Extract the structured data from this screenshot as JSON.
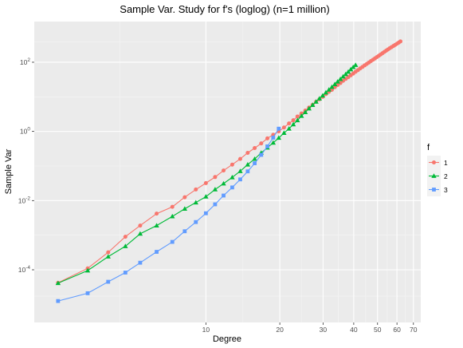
{
  "chart_data": {
    "type": "line",
    "title": "Sample Var. Study for f's (loglog) (n=1 million)",
    "xlabel": "Degree",
    "ylabel": "Sample Var",
    "x_scale": "log",
    "y_scale": "log",
    "xlim": [
      2,
      75
    ],
    "ylim": [
      3e-06,
      1500
    ],
    "x_ticks": [
      {
        "value": 10,
        "label": "10"
      },
      {
        "value": 20,
        "label": "20"
      },
      {
        "value": 30,
        "label": "30"
      },
      {
        "value": 40,
        "label": "40"
      },
      {
        "value": 50,
        "label": "50"
      },
      {
        "value": 60,
        "label": "60"
      },
      {
        "value": 70,
        "label": "70"
      }
    ],
    "y_ticks": [
      {
        "value": 0.0001,
        "base": "10",
        "exp": "-4"
      },
      {
        "value": 0.01,
        "base": "10",
        "exp": "-2"
      },
      {
        "value": 1,
        "base": "10",
        "exp": "0"
      },
      {
        "value": 100,
        "base": "10",
        "exp": "2"
      }
    ],
    "grid": true,
    "background": "#ebebeb",
    "legend": {
      "title": "f",
      "position": "right"
    },
    "series": [
      {
        "name": "1",
        "color": "#F8766D",
        "marker": "circle",
        "points": [
          [
            2.5,
            4.2e-05
          ],
          [
            3.3,
            0.00011
          ],
          [
            4,
            0.00032
          ],
          [
            4.7,
            0.0009
          ],
          [
            5.4,
            0.0019
          ],
          [
            6.3,
            0.0042
          ],
          [
            7.3,
            0.0066
          ],
          [
            8.2,
            0.0125
          ],
          [
            9.1,
            0.021
          ],
          [
            10,
            0.032
          ],
          [
            10.9,
            0.048
          ],
          [
            11.8,
            0.074
          ],
          [
            12.8,
            0.11
          ],
          [
            13.8,
            0.16
          ],
          [
            14.8,
            0.24
          ],
          [
            15.8,
            0.33
          ],
          [
            16.8,
            0.45
          ],
          [
            17.8,
            0.63
          ],
          [
            18.8,
            0.8
          ],
          [
            19.8,
            1.0
          ],
          [
            20.8,
            1.3
          ],
          [
            21.8,
            1.7
          ],
          [
            22.7,
            2.1
          ],
          [
            23.6,
            2.7
          ],
          [
            24.5,
            3.3
          ],
          [
            25.4,
            4.0
          ],
          [
            26.3,
            4.9
          ],
          [
            27.2,
            5.9
          ],
          [
            28.1,
            7.2
          ],
          [
            29.0,
            8.5
          ],
          [
            29.9,
            10
          ],
          [
            30.8,
            12
          ],
          [
            31.7,
            14
          ],
          [
            32.6,
            16
          ],
          [
            33.5,
            19
          ],
          [
            34.4,
            22
          ],
          [
            35.3,
            25
          ],
          [
            36.2,
            29
          ],
          [
            37.1,
            33
          ],
          [
            38.0,
            37
          ],
          [
            38.9,
            42
          ],
          [
            39.8,
            47
          ],
          [
            40.7,
            53
          ],
          [
            41.6,
            59
          ],
          [
            42.5,
            66
          ],
          [
            43.4,
            73
          ],
          [
            44.3,
            81
          ],
          [
            45.2,
            89
          ],
          [
            46.1,
            98
          ],
          [
            47.0,
            108
          ],
          [
            47.9,
            118
          ],
          [
            48.8,
            129
          ],
          [
            49.7,
            141
          ],
          [
            50.6,
            154
          ],
          [
            51.5,
            168
          ],
          [
            52.4,
            183
          ],
          [
            53.3,
            199
          ],
          [
            54.2,
            216
          ],
          [
            55.1,
            234
          ],
          [
            56.0,
            253
          ],
          [
            57.0,
            273
          ],
          [
            58.0,
            295
          ],
          [
            59.0,
            318
          ],
          [
            60.0,
            343
          ],
          [
            61.0,
            370
          ],
          [
            62.0,
            400
          ]
        ]
      },
      {
        "name": "2",
        "color": "#00BA38",
        "marker": "triangle",
        "points": [
          [
            2.5,
            4.1e-05
          ],
          [
            3.3,
            9.5e-05
          ],
          [
            4,
            0.00024
          ],
          [
            4.7,
            0.00048
          ],
          [
            5.4,
            0.0011
          ],
          [
            6.3,
            0.0019
          ],
          [
            7.3,
            0.0035
          ],
          [
            8.2,
            0.0058
          ],
          [
            9.1,
            0.0088
          ],
          [
            10,
            0.013
          ],
          [
            10.9,
            0.021
          ],
          [
            11.8,
            0.031
          ],
          [
            12.8,
            0.047
          ],
          [
            13.8,
            0.071
          ],
          [
            14.8,
            0.11
          ],
          [
            15.8,
            0.16
          ],
          [
            16.8,
            0.24
          ],
          [
            17.8,
            0.34
          ],
          [
            18.8,
            0.47
          ],
          [
            19.8,
            0.65
          ],
          [
            20.8,
            0.9
          ],
          [
            21.8,
            1.2
          ],
          [
            22.7,
            1.6
          ],
          [
            23.6,
            2.1
          ],
          [
            24.5,
            2.8
          ],
          [
            25.4,
            3.6
          ],
          [
            26.3,
            4.6
          ],
          [
            27.2,
            5.8
          ],
          [
            28.1,
            7.2
          ],
          [
            29.0,
            8.9
          ],
          [
            29.9,
            10.9
          ],
          [
            30.8,
            13.3
          ],
          [
            31.7,
            16.1
          ],
          [
            32.6,
            19.3
          ],
          [
            33.5,
            23
          ],
          [
            34.4,
            27.5
          ],
          [
            35.3,
            32.5
          ],
          [
            36.2,
            38.5
          ],
          [
            37.1,
            45
          ],
          [
            38.0,
            53
          ],
          [
            38.9,
            62
          ],
          [
            39.8,
            72
          ],
          [
            40.7,
            83
          ]
        ]
      },
      {
        "name": "3",
        "color": "#619CFF",
        "marker": "square",
        "points": [
          [
            2.5,
            1.25e-05
          ],
          [
            3.3,
            2.1e-05
          ],
          [
            4,
            4.5e-05
          ],
          [
            4.7,
            8.3e-05
          ],
          [
            5.4,
            0.00016
          ],
          [
            6.3,
            0.00033
          ],
          [
            7.3,
            0.00064
          ],
          [
            8.2,
            0.0013
          ],
          [
            9.1,
            0.0024
          ],
          [
            10,
            0.0043
          ],
          [
            10.9,
            0.0078
          ],
          [
            11.8,
            0.014
          ],
          [
            12.8,
            0.024
          ],
          [
            13.8,
            0.041
          ],
          [
            14.8,
            0.07
          ],
          [
            15.8,
            0.12
          ],
          [
            16.8,
            0.21
          ],
          [
            17.8,
            0.37
          ],
          [
            18.8,
            0.66
          ],
          [
            19.8,
            1.2
          ]
        ]
      }
    ]
  }
}
